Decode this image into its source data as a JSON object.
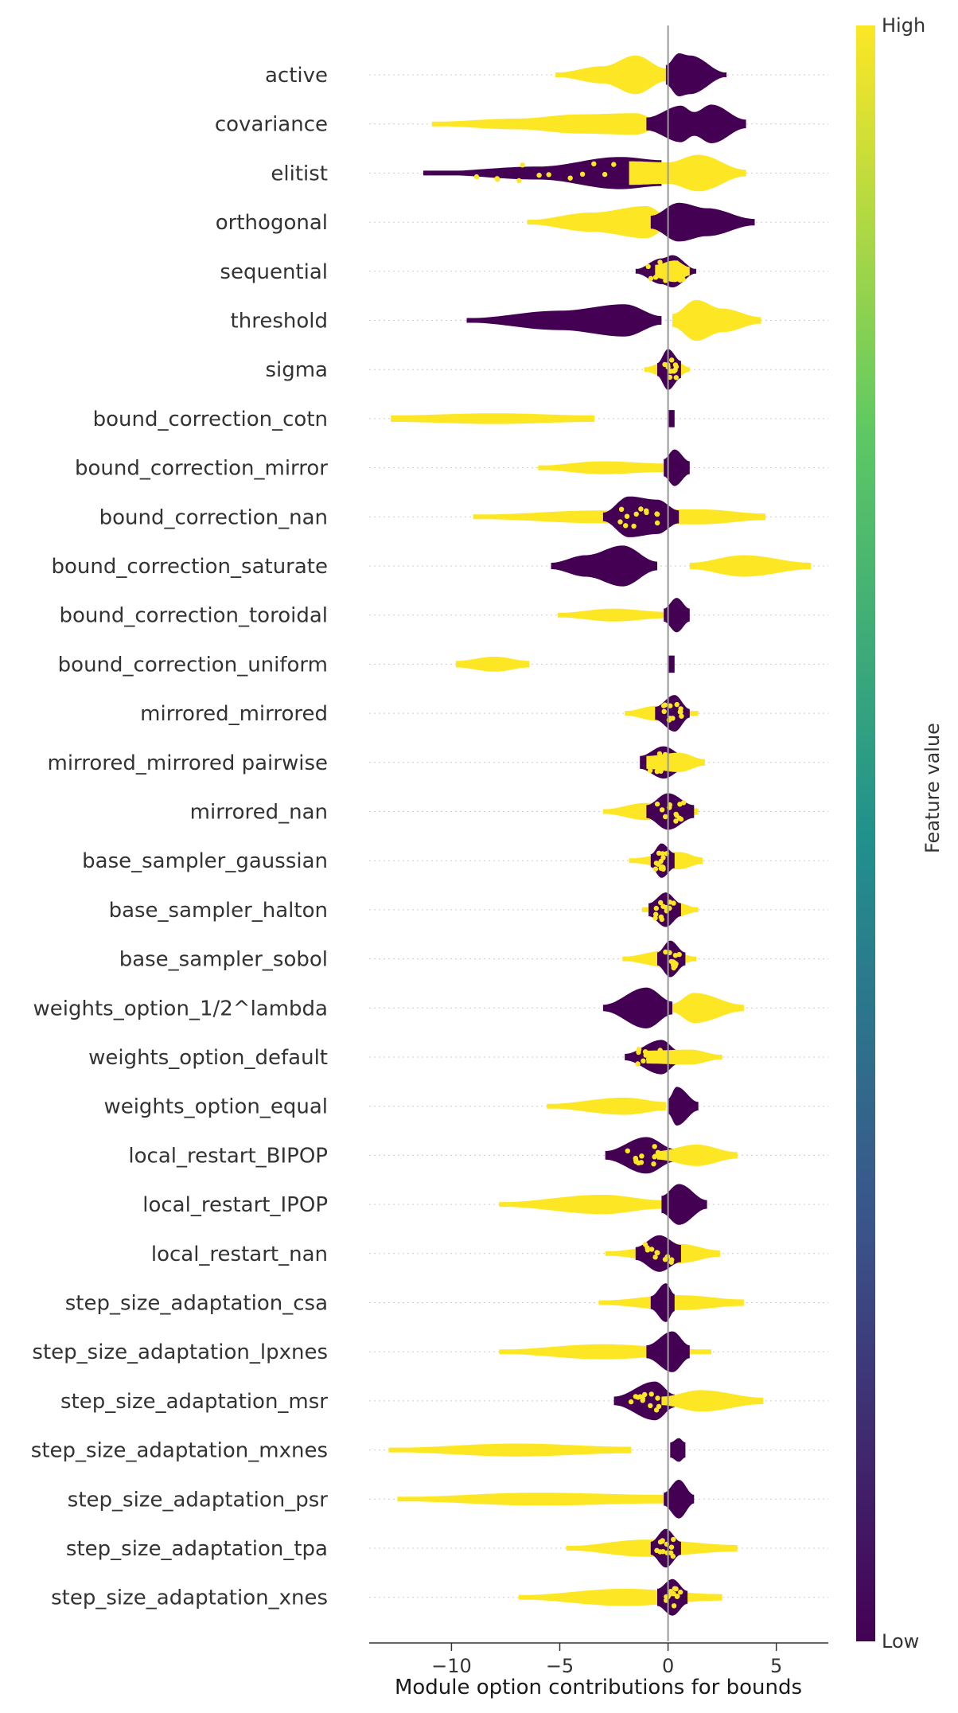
{
  "chart_data": {
    "type": "beeswarm",
    "xlabel": "Module option contributions for bounds",
    "xlim": [
      -13.8,
      7.4
    ],
    "xticks": [
      -10,
      -5,
      0,
      5
    ],
    "xtick_labels": [
      "−10",
      "−5",
      "0",
      "5"
    ],
    "colorbar": {
      "label": "Feature value",
      "high_label": "High",
      "low_label": "Low",
      "colors": [
        "#440154",
        "#3b528b",
        "#21918c",
        "#5ec962",
        "#fde725"
      ]
    },
    "point_colors": {
      "low": "#440154",
      "high": "#fde725"
    },
    "features": [
      {
        "name": "active",
        "low": [
          [
            -0.1,
            0.45
          ],
          [
            0.5,
            1.0
          ],
          [
            1.0,
            0.9
          ],
          [
            2.7,
            0.1
          ]
        ],
        "high": [
          [
            -5.2,
            0.1
          ],
          [
            -3.0,
            0.4
          ],
          [
            -1.5,
            0.9
          ],
          [
            -0.1,
            0.3
          ]
        ],
        "mixed": false
      },
      {
        "name": "covariance",
        "low": [
          [
            -1.0,
            0.3
          ],
          [
            0.6,
            0.85
          ],
          [
            1.2,
            0.55
          ],
          [
            2.0,
            0.9
          ],
          [
            3.6,
            0.2
          ]
        ],
        "high": [
          [
            -10.9,
            0.1
          ],
          [
            -7.0,
            0.25
          ],
          [
            -4.0,
            0.45
          ],
          [
            -1.5,
            0.5
          ],
          [
            -0.3,
            0.15
          ]
        ],
        "mixed": false
      },
      {
        "name": "elitist",
        "low": [
          [
            -11.3,
            0.05
          ],
          [
            -6.0,
            0.3
          ],
          [
            -2.2,
            0.75
          ],
          [
            -0.3,
            0.6
          ]
        ],
        "high": [
          [
            -1.8,
            0.55
          ],
          [
            0.0,
            0.5
          ],
          [
            1.4,
            0.85
          ],
          [
            3.6,
            0.15
          ]
        ],
        "mixed": true
      },
      {
        "name": "orthogonal",
        "low": [
          [
            -0.8,
            0.3
          ],
          [
            0.5,
            0.9
          ],
          [
            1.8,
            0.65
          ],
          [
            4.0,
            0.15
          ]
        ],
        "high": [
          [
            -6.5,
            0.1
          ],
          [
            -3.5,
            0.45
          ],
          [
            -1.0,
            0.75
          ],
          [
            0.0,
            0.3
          ]
        ],
        "mixed": false
      },
      {
        "name": "sequential",
        "low": [
          [
            -1.5,
            0.1
          ],
          [
            -0.3,
            0.6
          ],
          [
            0.2,
            0.75
          ],
          [
            1.3,
            0.1
          ]
        ],
        "high": [
          [
            -0.6,
            0.3
          ],
          [
            0.3,
            0.5
          ],
          [
            1.0,
            0.2
          ]
        ],
        "mixed": true
      },
      {
        "name": "threshold",
        "low": [
          [
            -9.3,
            0.1
          ],
          [
            -5.0,
            0.45
          ],
          [
            -2.0,
            0.75
          ],
          [
            -0.3,
            0.2
          ]
        ],
        "high": [
          [
            0.2,
            0.3
          ],
          [
            1.3,
            0.95
          ],
          [
            2.5,
            0.55
          ],
          [
            4.3,
            0.15
          ]
        ],
        "mixed": false
      },
      {
        "name": "sigma",
        "low": [
          [
            -0.5,
            0.3
          ],
          [
            0.0,
            0.95
          ],
          [
            0.6,
            0.4
          ]
        ],
        "high": [
          [
            -1.1,
            0.1
          ],
          [
            0.2,
            0.5
          ],
          [
            1.0,
            0.1
          ]
        ],
        "mixed": true
      },
      {
        "name": "bound_correction_cotn",
        "low": [
          [
            0.0,
            0.4
          ],
          [
            0.3,
            0.4
          ]
        ],
        "high": [
          [
            -12.8,
            0.15
          ],
          [
            -8.0,
            0.25
          ],
          [
            -3.4,
            0.15
          ]
        ],
        "mixed": false
      },
      {
        "name": "bound_correction_mirror",
        "low": [
          [
            -0.2,
            0.4
          ],
          [
            0.3,
            0.85
          ],
          [
            1.0,
            0.3
          ]
        ],
        "high": [
          [
            -6.0,
            0.1
          ],
          [
            -3.0,
            0.3
          ],
          [
            -0.2,
            0.2
          ]
        ],
        "mixed": false
      },
      {
        "name": "bound_correction_nan",
        "low": [
          [
            -3.0,
            0.2
          ],
          [
            -1.8,
            0.95
          ],
          [
            -0.5,
            0.8
          ],
          [
            0.5,
            0.3
          ]
        ],
        "high": [
          [
            -9.0,
            0.1
          ],
          [
            -3.0,
            0.3
          ],
          [
            1.5,
            0.35
          ],
          [
            4.5,
            0.15
          ]
        ],
        "mixed": true
      },
      {
        "name": "bound_correction_saturate",
        "low": [
          [
            -5.4,
            0.15
          ],
          [
            -3.8,
            0.5
          ],
          [
            -2.1,
            0.95
          ],
          [
            -0.5,
            0.2
          ]
        ],
        "high": [
          [
            1.0,
            0.15
          ],
          [
            3.5,
            0.5
          ],
          [
            6.6,
            0.15
          ]
        ],
        "mixed": false
      },
      {
        "name": "bound_correction_toroidal",
        "low": [
          [
            -0.2,
            0.3
          ],
          [
            0.4,
            0.8
          ],
          [
            1.0,
            0.3
          ]
        ],
        "high": [
          [
            -5.1,
            0.1
          ],
          [
            -2.5,
            0.3
          ],
          [
            -0.1,
            0.15
          ]
        ],
        "mixed": false
      },
      {
        "name": "bound_correction_uniform",
        "low": [
          [
            0.0,
            0.4
          ],
          [
            0.3,
            0.4
          ]
        ],
        "high": [
          [
            -9.8,
            0.15
          ],
          [
            -8.0,
            0.35
          ],
          [
            -6.4,
            0.15
          ]
        ],
        "mixed": false
      },
      {
        "name": "mirrored_mirrored",
        "low": [
          [
            -0.6,
            0.3
          ],
          [
            0.3,
            0.85
          ],
          [
            1.0,
            0.2
          ]
        ],
        "high": [
          [
            -2.0,
            0.1
          ],
          [
            -0.5,
            0.35
          ],
          [
            1.4,
            0.1
          ]
        ],
        "mixed": true
      },
      {
        "name": "mirrored_mirrored pairwise",
        "low": [
          [
            -1.3,
            0.3
          ],
          [
            -0.2,
            0.75
          ],
          [
            0.8,
            0.3
          ]
        ],
        "high": [
          [
            -1.0,
            0.3
          ],
          [
            0.5,
            0.45
          ],
          [
            1.7,
            0.15
          ]
        ],
        "mixed": true
      },
      {
        "name": "mirrored_nan",
        "low": [
          [
            -1.0,
            0.3
          ],
          [
            0.0,
            0.85
          ],
          [
            1.2,
            0.3
          ]
        ],
        "high": [
          [
            -3.0,
            0.1
          ],
          [
            -1.0,
            0.4
          ],
          [
            1.4,
            0.15
          ]
        ],
        "mixed": true
      },
      {
        "name": "base_sampler_gaussian",
        "low": [
          [
            -0.8,
            0.3
          ],
          [
            -0.3,
            0.8
          ],
          [
            0.3,
            0.35
          ]
        ],
        "high": [
          [
            -1.8,
            0.1
          ],
          [
            0.5,
            0.4
          ],
          [
            1.6,
            0.15
          ]
        ],
        "mixed": true
      },
      {
        "name": "base_sampler_halton",
        "low": [
          [
            -0.9,
            0.3
          ],
          [
            -0.1,
            0.8
          ],
          [
            0.6,
            0.3
          ]
        ],
        "high": [
          [
            -1.2,
            0.1
          ],
          [
            0.3,
            0.35
          ],
          [
            1.4,
            0.1
          ]
        ],
        "mixed": true
      },
      {
        "name": "base_sampler_sobol",
        "low": [
          [
            -0.5,
            0.3
          ],
          [
            0.1,
            0.85
          ],
          [
            0.8,
            0.3
          ]
        ],
        "high": [
          [
            -2.1,
            0.1
          ],
          [
            0.0,
            0.4
          ],
          [
            1.3,
            0.1
          ]
        ],
        "mixed": true
      },
      {
        "name": "weights_option_1/2^lambda",
        "low": [
          [
            -3.0,
            0.15
          ],
          [
            -1.0,
            0.95
          ],
          [
            0.2,
            0.3
          ]
        ],
        "high": [
          [
            0.2,
            0.2
          ],
          [
            1.2,
            0.7
          ],
          [
            3.5,
            0.15
          ]
        ],
        "mixed": false
      },
      {
        "name": "weights_option_default",
        "low": [
          [
            -2.0,
            0.15
          ],
          [
            -0.3,
            0.8
          ],
          [
            0.5,
            0.3
          ]
        ],
        "high": [
          [
            -1.0,
            0.3
          ],
          [
            1.0,
            0.35
          ],
          [
            2.5,
            0.1
          ]
        ],
        "mixed": true
      },
      {
        "name": "weights_option_equal",
        "low": [
          [
            0.0,
            0.35
          ],
          [
            0.4,
            0.9
          ],
          [
            1.4,
            0.2
          ]
        ],
        "high": [
          [
            -5.6,
            0.1
          ],
          [
            -2.0,
            0.4
          ],
          [
            -0.1,
            0.2
          ]
        ],
        "mixed": false
      },
      {
        "name": "local_restart_BIPOP",
        "low": [
          [
            -2.9,
            0.2
          ],
          [
            -1.0,
            0.85
          ],
          [
            0.3,
            0.3
          ]
        ],
        "high": [
          [
            -0.5,
            0.2
          ],
          [
            1.3,
            0.5
          ],
          [
            3.2,
            0.15
          ]
        ],
        "mixed": true
      },
      {
        "name": "local_restart_IPOP",
        "low": [
          [
            -0.3,
            0.4
          ],
          [
            0.5,
            0.95
          ],
          [
            1.8,
            0.2
          ]
        ],
        "high": [
          [
            -7.8,
            0.1
          ],
          [
            -3.0,
            0.45
          ],
          [
            -0.3,
            0.2
          ]
        ],
        "mixed": false
      },
      {
        "name": "local_restart_nan",
        "low": [
          [
            -1.5,
            0.3
          ],
          [
            -0.4,
            0.85
          ],
          [
            0.6,
            0.4
          ]
        ],
        "high": [
          [
            -2.9,
            0.1
          ],
          [
            0.5,
            0.45
          ],
          [
            2.4,
            0.15
          ]
        ],
        "mixed": true
      },
      {
        "name": "step_size_adaptation_csa",
        "low": [
          [
            -0.8,
            0.3
          ],
          [
            -0.1,
            0.9
          ],
          [
            0.3,
            0.4
          ]
        ],
        "high": [
          [
            -3.2,
            0.1
          ],
          [
            0.5,
            0.35
          ],
          [
            3.5,
            0.15
          ]
        ],
        "mixed": false
      },
      {
        "name": "step_size_adaptation_lpxnes",
        "low": [
          [
            -1.0,
            0.3
          ],
          [
            0.2,
            0.95
          ],
          [
            1.0,
            0.3
          ]
        ],
        "high": [
          [
            -7.8,
            0.1
          ],
          [
            -3.0,
            0.35
          ],
          [
            2.0,
            0.1
          ]
        ],
        "mixed": false
      },
      {
        "name": "step_size_adaptation_msr",
        "low": [
          [
            -2.5,
            0.2
          ],
          [
            -0.6,
            0.9
          ],
          [
            0.3,
            0.3
          ]
        ],
        "high": [
          [
            -0.3,
            0.2
          ],
          [
            1.5,
            0.5
          ],
          [
            4.4,
            0.15
          ]
        ],
        "mixed": true
      },
      {
        "name": "step_size_adaptation_mxnes",
        "low": [
          [
            0.1,
            0.35
          ],
          [
            0.5,
            0.55
          ],
          [
            0.8,
            0.35
          ]
        ],
        "high": [
          [
            -12.9,
            0.1
          ],
          [
            -7.0,
            0.3
          ],
          [
            -1.7,
            0.15
          ]
        ],
        "mixed": false
      },
      {
        "name": "step_size_adaptation_psr",
        "low": [
          [
            -0.2,
            0.3
          ],
          [
            0.5,
            0.9
          ],
          [
            1.2,
            0.2
          ]
        ],
        "high": [
          [
            -12.5,
            0.1
          ],
          [
            -6.0,
            0.3
          ],
          [
            -0.2,
            0.2
          ]
        ],
        "mixed": false
      },
      {
        "name": "step_size_adaptation_tpa",
        "low": [
          [
            -0.8,
            0.3
          ],
          [
            -0.1,
            0.9
          ],
          [
            0.6,
            0.3
          ]
        ],
        "high": [
          [
            -4.7,
            0.1
          ],
          [
            -1.0,
            0.4
          ],
          [
            3.2,
            0.15
          ]
        ],
        "mixed": true
      },
      {
        "name": "step_size_adaptation_xnes",
        "low": [
          [
            -0.5,
            0.4
          ],
          [
            0.2,
            0.85
          ],
          [
            0.9,
            0.3
          ]
        ],
        "high": [
          [
            -6.9,
            0.1
          ],
          [
            -2.0,
            0.4
          ],
          [
            2.5,
            0.15
          ]
        ],
        "mixed": true
      }
    ]
  }
}
